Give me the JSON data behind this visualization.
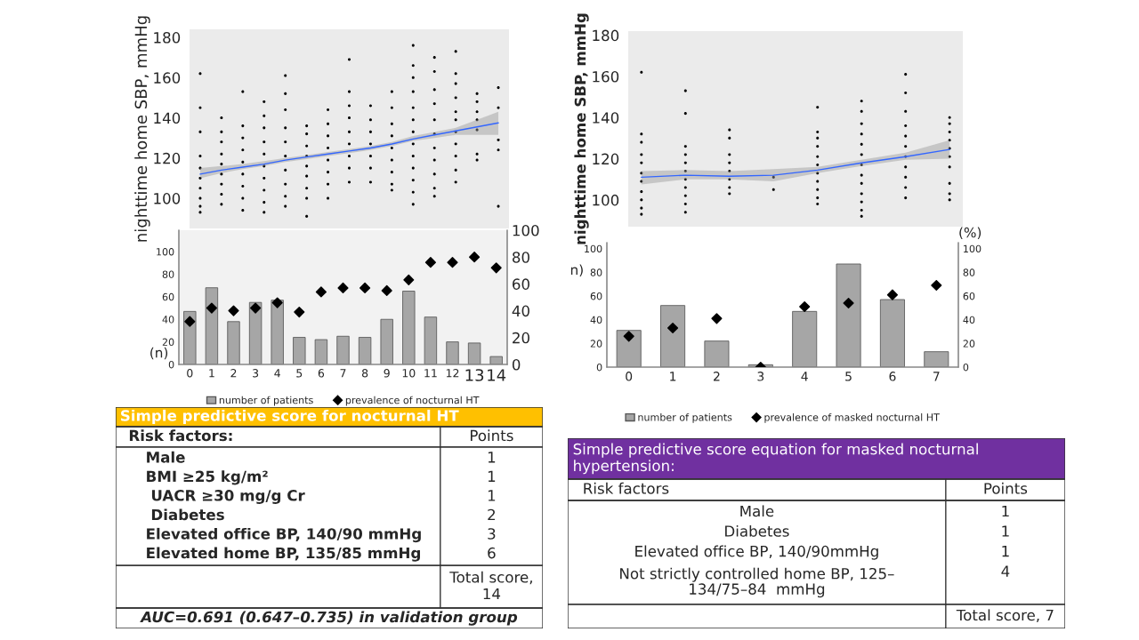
{
  "chart_data": [
    {
      "type": "scatter",
      "ylabel": "nighttime home SBP, mmHg",
      "categories": [
        null,
        null,
        null,
        null,
        null,
        null,
        null,
        null,
        null,
        null,
        null,
        null,
        null,
        null,
        null
      ],
      "ylim": [
        85,
        184
      ],
      "yticks": [
        100,
        120,
        140,
        160,
        180
      ],
      "tick_labels": "y",
      "series": [
        {
          "type": "scatter",
          "color": "#000000",
          "values": [
            162,
            140,
            153,
            148,
            161,
            136,
            144,
            169,
            146,
            153,
            176,
            170,
            173,
            152,
            155
          ]
        },
        {
          "type": "scatter",
          "color": "#000000",
          "values": [
            145,
            133,
            136,
            141,
            152,
            132,
            137,
            153,
            139,
            145,
            166,
            163,
            162,
            148,
            145
          ]
        },
        {
          "type": "scatter",
          "color": "#000000",
          "values": [
            133,
            128,
            130,
            135,
            144,
            126,
            131,
            146,
            133,
            137,
            160,
            154,
            157,
            143,
            129
          ]
        },
        {
          "type": "scatter",
          "color": "#000000",
          "values": [
            121,
            122,
            124,
            128,
            135,
            121,
            125,
            140,
            127,
            131,
            153,
            147,
            150,
            139,
            124
          ]
        },
        {
          "type": "scatter",
          "color": "#000000",
          "values": [
            115,
            117,
            118,
            122,
            128,
            116,
            119,
            133,
            121,
            125,
            145,
            139,
            143,
            134,
            96
          ]
        },
        {
          "type": "scatter",
          "color": "#000000",
          "values": [
            110,
            112,
            112,
            116,
            121,
            111,
            113,
            127,
            115,
            119,
            139,
            132,
            139,
            122,
            null
          ]
        },
        {
          "type": "scatter",
          "color": "#000000",
          "values": [
            105,
            107,
            106,
            110,
            114,
            105,
            107,
            121,
            108,
            113,
            133,
            125,
            133,
            119,
            null
          ]
        },
        {
          "type": "scatter",
          "color": "#000000",
          "values": [
            100,
            102,
            100,
            104,
            107,
            100,
            100,
            115,
            null,
            107,
            127,
            119,
            127,
            null,
            null
          ]
        },
        {
          "type": "scatter",
          "color": "#000000",
          "values": [
            96,
            97,
            94,
            98,
            101,
            91,
            null,
            108,
            null,
            104,
            121,
            112,
            121,
            null,
            null
          ]
        },
        {
          "type": "scatter",
          "color": "#000000",
          "values": [
            93,
            null,
            null,
            93,
            96,
            null,
            null,
            null,
            null,
            null,
            115,
            105,
            114,
            null,
            null
          ]
        },
        {
          "type": "scatter",
          "color": "#000000",
          "values": [
            null,
            null,
            null,
            null,
            null,
            null,
            null,
            null,
            null,
            null,
            109,
            101,
            108,
            null,
            null
          ]
        },
        {
          "type": "scatter",
          "color": "#000000",
          "values": [
            null,
            null,
            null,
            null,
            null,
            null,
            null,
            null,
            null,
            null,
            103,
            null,
            null,
            null,
            null
          ]
        },
        {
          "type": "scatter",
          "color": "#000000",
          "values": [
            null,
            null,
            null,
            null,
            null,
            null,
            null,
            null,
            null,
            null,
            97,
            null,
            null,
            null,
            null
          ]
        },
        {
          "type": "line",
          "color": "#3366ff",
          "values": [
            112,
            114,
            115.5,
            117,
            119,
            120.5,
            122,
            123.5,
            125,
            127,
            129.5,
            131.5,
            133.5,
            135.5,
            137.5
          ],
          "lower": [
            110,
            112.5,
            114.5,
            116,
            118,
            119.5,
            121,
            122.5,
            124,
            126,
            128.5,
            130,
            131.5,
            131.5,
            131.5
          ],
          "upper": [
            115,
            116,
            117,
            118.5,
            120,
            121.5,
            123,
            124.5,
            126,
            128,
            131,
            133,
            135,
            139,
            143
          ]
        }
      ]
    },
    {
      "type": "bar",
      "categories": [
        "0",
        "1",
        "2",
        "3",
        "4",
        "5",
        "6",
        "7",
        "8",
        "9",
        "10",
        "11",
        "12",
        "13",
        "14"
      ],
      "ylim": [
        0,
        119
      ],
      "yticks": [
        0,
        20,
        40,
        60,
        80,
        100
      ],
      "y2lim": [
        0,
        100
      ],
      "y2ticks": [
        0,
        20,
        40,
        60,
        80,
        100
      ],
      "legend": "bottom",
      "annotations": [
        "(n)"
      ],
      "series": [
        {
          "name": "number of patients",
          "type": "bar",
          "color": "#a6a6a6",
          "values": [
            47,
            68,
            38,
            55,
            57,
            24,
            22,
            25,
            24,
            40,
            65,
            42,
            20,
            19,
            7
          ]
        },
        {
          "name": "prevalence of nocturnal HT",
          "type": "scatter",
          "axis": "y2",
          "marker": "diamond",
          "color": "#000000",
          "values": [
            32,
            42,
            40,
            42,
            46,
            39,
            54,
            57,
            57,
            55,
            63,
            76,
            76,
            80,
            72
          ]
        }
      ]
    },
    {
      "type": "scatter",
      "ylabel": "nighttime home SBP, mmHg",
      "categories": [
        null,
        null,
        null,
        null,
        null,
        null,
        null,
        null
      ],
      "ylim": [
        87,
        182
      ],
      "yticks": [
        100,
        120,
        140,
        160,
        180
      ],
      "tick_labels": "y",
      "series": [
        {
          "type": "scatter",
          "color": "#000000",
          "values": [
            162,
            153,
            134,
            111,
            145,
            148,
            161,
            140
          ]
        },
        {
          "type": "scatter",
          "color": "#000000",
          "values": [
            132,
            142,
            130,
            105,
            133,
            143,
            152,
            137
          ]
        },
        {
          "type": "scatter",
          "color": "#000000",
          "values": [
            128,
            126,
            122,
            null,
            130,
            137,
            143,
            133
          ]
        },
        {
          "type": "scatter",
          "color": "#000000",
          "values": [
            122,
            122,
            118,
            null,
            126,
            132,
            136,
            129
          ]
        },
        {
          "type": "scatter",
          "color": "#000000",
          "values": [
            118,
            118,
            114,
            null,
            121,
            127,
            131,
            125
          ]
        },
        {
          "type": "scatter",
          "color": "#000000",
          "values": [
            113,
            114,
            110,
            null,
            117,
            122,
            126,
            121
          ]
        },
        {
          "type": "scatter",
          "color": "#000000",
          "values": [
            109,
            110,
            106,
            null,
            113,
            117,
            121,
            116
          ]
        },
        {
          "type": "scatter",
          "color": "#000000",
          "values": [
            104,
            106,
            103,
            null,
            109,
            112,
            116,
            108
          ]
        },
        {
          "type": "scatter",
          "color": "#000000",
          "values": [
            100,
            102,
            null,
            null,
            105,
            108,
            111,
            103
          ]
        },
        {
          "type": "scatter",
          "color": "#000000",
          "values": [
            96,
            98,
            null,
            null,
            101,
            103,
            106,
            100
          ]
        },
        {
          "type": "scatter",
          "color": "#000000",
          "values": [
            93,
            94,
            null,
            null,
            98,
            99,
            101,
            null
          ]
        },
        {
          "type": "scatter",
          "color": "#000000",
          "values": [
            null,
            null,
            null,
            null,
            null,
            95,
            null,
            null
          ]
        },
        {
          "type": "scatter",
          "color": "#000000",
          "values": [
            null,
            null,
            null,
            null,
            null,
            92,
            null,
            null
          ]
        },
        {
          "type": "line",
          "color": "#3366ff",
          "values": [
            111,
            112,
            111.5,
            112,
            114.5,
            118,
            121,
            124.5
          ],
          "lower": [
            107.5,
            110,
            110,
            109,
            113,
            116.5,
            119.5,
            120
          ],
          "upper": [
            114,
            114.5,
            114,
            115,
            116,
            119.5,
            123,
            129
          ]
        }
      ]
    },
    {
      "type": "bar",
      "categories": [
        "0",
        "1",
        "2",
        "3",
        "4",
        "5",
        "6",
        "7"
      ],
      "ylim": [
        0,
        105
      ],
      "yticks": [
        0,
        20,
        40,
        60,
        80,
        100
      ],
      "y2lim": [
        0,
        105
      ],
      "y2ticks": [
        0,
        20,
        40,
        60,
        80,
        100
      ],
      "legend": "bottom",
      "annotations": [
        "n)",
        "(%)"
      ],
      "series": [
        {
          "name": "number of patients",
          "type": "bar",
          "color": "#a6a6a6",
          "values": [
            31,
            52,
            22,
            2,
            47,
            87,
            57,
            13
          ]
        },
        {
          "name": "prevalence of masked nocturnal HT",
          "type": "scatter",
          "axis": "y2",
          "marker": "diamond",
          "color": "#000000",
          "values": [
            26,
            33,
            41,
            0,
            51,
            54,
            61,
            69
          ]
        }
      ]
    },
    {
      "type": "other",
      "title": "Simple predictive score for nocturnal HT",
      "color": "#ffc000",
      "data_labels": true,
      "categories": [
        "Male",
        "BMI ≥25 kg/m²",
        " UACR ≥30 mg/g Cr",
        " Diabetes",
        "Elevated office BP, 140/90 mmHg",
        "Elevated home BP, 135/85 mmHg"
      ],
      "values": [
        1,
        1,
        1,
        2,
        3,
        6
      ],
      "annotations": [
        "Risk factors:",
        "Points",
        "Total score,\n14",
        "AUC=0.691 (0.647–0.735) in validation group"
      ]
    },
    {
      "type": "other",
      "title": "Simple predictive score equation for masked nocturnal\nhypertension:",
      "color": "#7030a0",
      "data_labels": true,
      "categories": [
        "Male",
        "Diabetes",
        "Elevated office BP, 140/90mmHg",
        "Not strictly controlled home BP, 125–\n134/75–84  mmHg"
      ],
      "values": [
        1,
        1,
        1,
        4
      ],
      "annotations": [
        "Risk factors",
        "Points",
        "Total score, 7"
      ]
    }
  ]
}
